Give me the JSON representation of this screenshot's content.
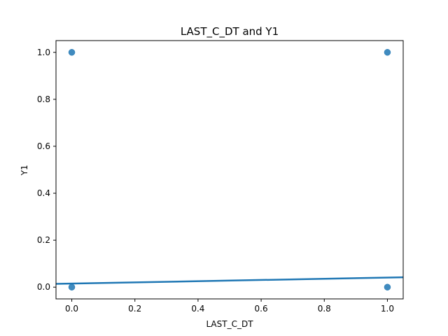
{
  "chart_data": {
    "type": "scatter",
    "title": "LAST_C_DT and Y1",
    "xlabel": "LAST_C_DT",
    "ylabel": "Y1",
    "xlim": [
      -0.05,
      1.05
    ],
    "ylim": [
      -0.05,
      1.05
    ],
    "x_ticks": [
      0.0,
      0.2,
      0.4,
      0.6,
      0.8,
      1.0
    ],
    "x_tick_labels": [
      "0.0",
      "0.2",
      "0.4",
      "0.6",
      "0.8",
      "1.0"
    ],
    "y_ticks": [
      0.0,
      0.2,
      0.4,
      0.6,
      0.8,
      1.0
    ],
    "y_tick_labels": [
      "0.0",
      "0.2",
      "0.4",
      "0.6",
      "0.8",
      "1.0"
    ],
    "grid": false,
    "points": [
      {
        "x": 0,
        "y": 1
      },
      {
        "x": 0,
        "y": 0
      },
      {
        "x": 1,
        "y": 1
      },
      {
        "x": 1,
        "y": 0
      }
    ],
    "regression_line": {
      "x": [
        -0.05,
        1.05
      ],
      "y": [
        0.014,
        0.042
      ]
    },
    "colors": {
      "points": "#1f77b4",
      "line": "#1f77b4"
    }
  }
}
